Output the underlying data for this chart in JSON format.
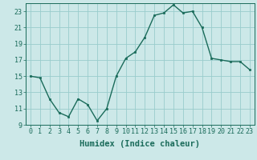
{
  "x": [
    0,
    1,
    2,
    3,
    4,
    5,
    6,
    7,
    8,
    9,
    10,
    11,
    12,
    13,
    14,
    15,
    16,
    17,
    18,
    19,
    20,
    21,
    22,
    23
  ],
  "y": [
    15.0,
    14.8,
    12.2,
    10.5,
    10.0,
    12.2,
    11.5,
    9.5,
    11.0,
    15.0,
    17.2,
    18.0,
    19.8,
    22.5,
    22.8,
    23.8,
    22.8,
    23.0,
    21.0,
    17.2,
    17.0,
    16.8,
    16.8,
    15.8
  ],
  "line_color": "#1a6b5a",
  "marker_color": "#1a6b5a",
  "bg_color": "#cce8e8",
  "grid_color": "#99cccc",
  "axis_color": "#1a6b5a",
  "xlabel": "Humidex (Indice chaleur)",
  "ylim": [
    9,
    24
  ],
  "xlim": [
    -0.5,
    23.5
  ],
  "yticks": [
    9,
    11,
    13,
    15,
    17,
    19,
    21,
    23
  ],
  "xticks": [
    0,
    1,
    2,
    3,
    4,
    5,
    6,
    7,
    8,
    9,
    10,
    11,
    12,
    13,
    14,
    15,
    16,
    17,
    18,
    19,
    20,
    21,
    22,
    23
  ],
  "xtick_labels": [
    "0",
    "1",
    "2",
    "3",
    "4",
    "5",
    "6",
    "7",
    "8",
    "9",
    "10",
    "11",
    "12",
    "13",
    "14",
    "15",
    "16",
    "17",
    "18",
    "19",
    "20",
    "21",
    "22",
    "23"
  ],
  "ytick_labels": [
    "9",
    "11",
    "13",
    "15",
    "17",
    "19",
    "21",
    "23"
  ],
  "font_size": 6.0,
  "xlabel_fontsize": 7.5
}
